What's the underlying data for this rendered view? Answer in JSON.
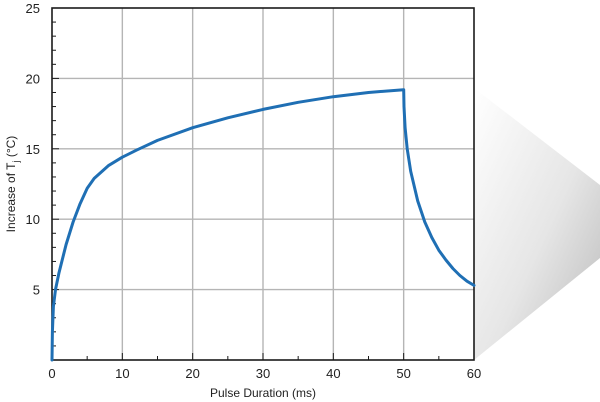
{
  "chart_data": {
    "type": "line",
    "title": "",
    "xlabel": "Pulse Duration (ms)",
    "ylabel_main": "Increase of T",
    "ylabel_sub": "j",
    "ylabel_unit": " (°C)",
    "xlim": [
      0,
      60
    ],
    "ylim": [
      0,
      25
    ],
    "x_ticks": [
      0,
      10,
      20,
      30,
      40,
      50,
      60
    ],
    "y_ticks": [
      5,
      10,
      15,
      20,
      25
    ],
    "grid": true,
    "line_color": "#1f6fb4",
    "series": [
      {
        "x": [
          0,
          0.05,
          0.2,
          0.5,
          1,
          2,
          3,
          4,
          5,
          6,
          8,
          10,
          12,
          15,
          20,
          25,
          30,
          35,
          40,
          45,
          50,
          50.05,
          50.2,
          50.5,
          51,
          52,
          53,
          54,
          55,
          56,
          57,
          58,
          59,
          60
        ],
        "y": [
          0,
          2.0,
          3.8,
          5.0,
          6.2,
          8.2,
          9.8,
          11.1,
          12.2,
          12.9,
          13.8,
          14.4,
          14.9,
          15.6,
          16.5,
          17.2,
          17.8,
          18.3,
          18.7,
          19.0,
          19.2,
          18.0,
          16.5,
          15.0,
          13.4,
          11.3,
          9.8,
          8.7,
          7.8,
          7.1,
          6.5,
          6.0,
          5.6,
          5.3
        ]
      }
    ]
  }
}
